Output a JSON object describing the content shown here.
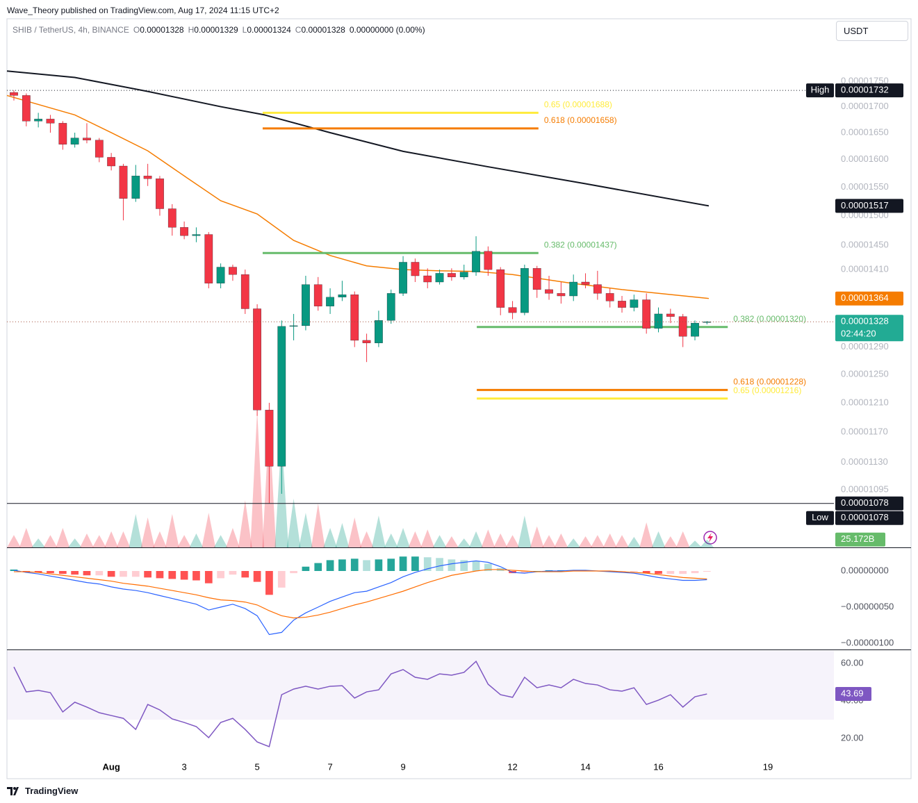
{
  "header": {
    "publisher": "Wave_Theory published on TradingView.com, Aug 17, 2024 11:15 UTC+2",
    "symbol": "SHIB / TetherUS, 4h, BINANCE",
    "ohlc": [
      {
        "key": "O",
        "value": "0.00001328"
      },
      {
        "key": "H",
        "value": "0.00001329"
      },
      {
        "key": "L",
        "value": "0.00001324"
      },
      {
        "key": "C",
        "value": "0.00001328"
      }
    ],
    "change": "0.00000000 (0.00%)",
    "currency": "USDT"
  },
  "footer": {
    "brand": "TradingView"
  },
  "chart_data": {
    "type": "candlestick",
    "log_scale": true,
    "up_color": "#089981",
    "down_color": "#f23645",
    "xlim": [
      -1.86,
      20.81
    ],
    "xticks": [
      {
        "value": 1,
        "label": "Aug"
      },
      3,
      5,
      7,
      9,
      12,
      14,
      16,
      19
    ],
    "ylim": [
      1.025e-05,
      1.879e-05
    ],
    "yticks": [
      {
        "value": 1.75e-05,
        "label": "0.00001750"
      },
      {
        "value": 1.7e-05,
        "label": "0.00001700"
      },
      {
        "value": 1.65e-05,
        "label": "0.00001650"
      },
      {
        "value": 1.6e-05,
        "label": "0.00001600"
      },
      {
        "value": 1.55e-05,
        "label": "0.00001550"
      },
      {
        "value": 1.5e-05,
        "label": "0.00001500"
      },
      {
        "value": 1.45e-05,
        "label": "0.00001450"
      },
      {
        "value": 1.41e-05,
        "label": "0.00001410"
      },
      {
        "value": 1.29e-05,
        "label": "0.00001290"
      },
      {
        "value": 1.25e-05,
        "label": "0.00001250"
      },
      {
        "value": 1.21e-05,
        "label": "0.00001210"
      },
      {
        "value": 1.17e-05,
        "label": "0.00001170"
      },
      {
        "value": 1.13e-05,
        "label": "0.00001130"
      },
      {
        "value": 1.095e-05,
        "label": "0.00001095"
      }
    ],
    "x": [
      -1.67,
      -1.33,
      -1,
      -0.67,
      -0.33,
      0,
      0.33,
      0.67,
      1,
      1.33,
      1.67,
      2,
      2.33,
      2.67,
      3,
      3.33,
      3.67,
      4,
      4.33,
      4.67,
      5,
      5.33,
      5.67,
      6,
      6.33,
      6.67,
      7,
      7.33,
      7.67,
      8,
      8.33,
      8.67,
      9,
      9.33,
      9.67,
      10,
      10.33,
      10.67,
      11,
      11.33,
      11.67,
      12,
      12.33,
      12.67,
      13,
      13.33,
      13.67,
      14,
      14.33,
      14.67,
      15,
      15.33,
      15.67,
      16,
      16.33,
      16.67,
      17,
      17.33
    ],
    "ohlc": [
      [
        1.728e-05,
        1.732e-05,
        1.712e-05,
        1.722e-05
      ],
      [
        1.722e-05,
        1.726e-05,
        1.662e-05,
        1.672e-05
      ],
      [
        1.672e-05,
        1.688e-05,
        1.66e-05,
        1.676e-05
      ],
      [
        1.676e-05,
        1.684e-05,
        1.65e-05,
        1.668e-05
      ],
      [
        1.668e-05,
        1.672e-05,
        1.618e-05,
        1.628e-05
      ],
      [
        1.628e-05,
        1.65e-05,
        1.622e-05,
        1.64e-05
      ],
      [
        1.64e-05,
        1.668e-05,
        1.63e-05,
        1.636e-05
      ],
      [
        1.636e-05,
        1.64e-05,
        1.595e-05,
        1.604e-05
      ],
      [
        1.604e-05,
        1.612e-05,
        1.58e-05,
        1.588e-05
      ],
      [
        1.588e-05,
        1.592e-05,
        1.492e-05,
        1.53e-05
      ],
      [
        1.53e-05,
        1.59e-05,
        1.524e-05,
        1.57e-05
      ],
      [
        1.57e-05,
        1.592e-05,
        1.552e-05,
        1.565e-05
      ],
      [
        1.565e-05,
        1.57e-05,
        1.5e-05,
        1.512e-05
      ],
      [
        1.512e-05,
        1.52e-05,
        1.466e-05,
        1.48e-05
      ],
      [
        1.48e-05,
        1.49e-05,
        1.46e-05,
        1.466e-05
      ],
      [
        1.466e-05,
        1.48e-05,
        1.455e-05,
        1.468e-05
      ],
      [
        1.468e-05,
        1.472e-05,
        1.38e-05,
        1.388e-05
      ],
      [
        1.388e-05,
        1.42e-05,
        1.38e-05,
        1.414e-05
      ],
      [
        1.414e-05,
        1.418e-05,
        1.392e-05,
        1.402e-05
      ],
      [
        1.402e-05,
        1.41e-05,
        1.34e-05,
        1.348e-05
      ],
      [
        1.348e-05,
        1.355e-05,
        1.192e-05,
        1.2e-05
      ],
      [
        1.2e-05,
        1.21e-05,
        1.078e-05,
        1.125e-05
      ],
      [
        1.125e-05,
        1.33e-05,
        1.09e-05,
        1.321e-05
      ],
      [
        1.321e-05,
        1.34e-05,
        1.3e-05,
        1.322e-05
      ],
      [
        1.322e-05,
        1.4e-05,
        1.315e-05,
        1.386e-05
      ],
      [
        1.386e-05,
        1.398e-05,
        1.345e-05,
        1.352e-05
      ],
      [
        1.352e-05,
        1.38e-05,
        1.34e-05,
        1.366e-05
      ],
      [
        1.366e-05,
        1.392e-05,
        1.36e-05,
        1.37e-05
      ],
      [
        1.37e-05,
        1.375e-05,
        1.29e-05,
        1.3e-05
      ],
      [
        1.3e-05,
        1.31e-05,
        1.268e-05,
        1.296e-05
      ],
      [
        1.296e-05,
        1.345e-05,
        1.29e-05,
        1.33e-05
      ],
      [
        1.33e-05,
        1.378e-05,
        1.325e-05,
        1.372e-05
      ],
      [
        1.372e-05,
        1.432e-05,
        1.368e-05,
        1.422e-05
      ],
      [
        1.422e-05,
        1.428e-05,
        1.39e-05,
        1.4e-05
      ],
      [
        1.4e-05,
        1.412e-05,
        1.38e-05,
        1.39e-05
      ],
      [
        1.39e-05,
        1.41e-05,
        1.386e-05,
        1.404e-05
      ],
      [
        1.404e-05,
        1.412e-05,
        1.392e-05,
        1.398e-05
      ],
      [
        1.398e-05,
        1.418e-05,
        1.394e-05,
        1.406e-05
      ],
      [
        1.406e-05,
        1.465e-05,
        1.4e-05,
        1.44e-05
      ],
      [
        1.44e-05,
        1.448e-05,
        1.4e-05,
        1.41e-05
      ],
      [
        1.41e-05,
        1.414e-05,
        1.338e-05,
        1.35e-05
      ],
      [
        1.35e-05,
        1.36e-05,
        1.332e-05,
        1.342e-05
      ],
      [
        1.342e-05,
        1.418e-05,
        1.338e-05,
        1.412e-05
      ],
      [
        1.412e-05,
        1.416e-05,
        1.365e-05,
        1.378e-05
      ],
      [
        1.378e-05,
        1.4e-05,
        1.362e-05,
        1.372e-05
      ],
      [
        1.372e-05,
        1.39e-05,
        1.356e-05,
        1.368e-05
      ],
      [
        1.368e-05,
        1.402e-05,
        1.36e-05,
        1.39e-05
      ],
      [
        1.39e-05,
        1.404e-05,
        1.38e-05,
        1.386e-05
      ],
      [
        1.386e-05,
        1.408e-05,
        1.362e-05,
        1.372e-05
      ],
      [
        1.372e-05,
        1.38e-05,
        1.35e-05,
        1.36e-05
      ],
      [
        1.36e-05,
        1.368e-05,
        1.342e-05,
        1.35e-05
      ],
      [
        1.35e-05,
        1.37e-05,
        1.344e-05,
        1.362e-05
      ],
      [
        1.362e-05,
        1.372e-05,
        1.31e-05,
        1.318e-05
      ],
      [
        1.318e-05,
        1.35e-05,
        1.312e-05,
        1.34e-05
      ],
      [
        1.34e-05,
        1.348e-05,
        1.326e-05,
        1.336e-05
      ],
      [
        1.336e-05,
        1.34e-05,
        1.29e-05,
        1.306e-05
      ],
      [
        1.306e-05,
        1.33e-05,
        1.3e-05,
        1.326e-05
      ],
      [
        1.328e-05,
        1.329e-05,
        1.324e-05,
        1.328e-05
      ]
    ],
    "overlays": [
      {
        "color": "#131722",
        "x": [
          -1.86,
          0,
          2,
          4,
          5.2,
          7,
          9,
          11.3,
          14,
          17.38
        ],
        "values": [
          1.771e-05,
          1.758e-05,
          1.73e-05,
          1.7e-05,
          1.684e-05,
          1.65e-05,
          1.615e-05,
          1.587e-05,
          1.556e-05,
          1.517e-05
        ]
      },
      {
        "color": "#f57c00",
        "x": [
          -1.86,
          0,
          1,
          2,
          3,
          4,
          5,
          6,
          7,
          8,
          9,
          10,
          11,
          12,
          13.5,
          15,
          17.38
        ],
        "values": [
          1.722e-05,
          1.684e-05,
          1.65e-05,
          1.616e-05,
          1.57e-05,
          1.526e-05,
          1.503e-05,
          1.458e-05,
          1.433e-05,
          1.416e-05,
          1.41e-05,
          1.408e-05,
          1.407e-05,
          1.402e-05,
          1.389e-05,
          1.378e-05,
          1.364e-05
        ]
      }
    ],
    "levels": [
      {
        "label": "0.65 (0.00001688)",
        "value": 1.688e-05,
        "x": [
          5.15,
          12.71
        ],
        "color": "#ffeb3b"
      },
      {
        "label": "0.618 (0.00001658)",
        "value": 1.658e-05,
        "x": [
          5.15,
          12.71
        ],
        "color": "#f57c00"
      },
      {
        "label": "0.382 (0.00001437)",
        "value": 1.437e-05,
        "x": [
          5.15,
          12.71
        ],
        "color": "#66bb6a"
      },
      {
        "label": "0.382 (0.00001320)",
        "value": 1.32e-05,
        "x": [
          11.02,
          17.9
        ],
        "color": "#66bb6a"
      },
      {
        "label": "0.618 (0.00001228)",
        "value": 1.228e-05,
        "x": [
          11.02,
          17.9
        ],
        "color": "#f57c00"
      },
      {
        "label": "0.65 (0.00001216)",
        "value": 1.216e-05,
        "x": [
          11.02,
          17.9
        ],
        "color": "#ffeb3b"
      }
    ],
    "price_labels": [
      {
        "value": 1.732e-05,
        "label": "0.00001732",
        "tag": "High",
        "color": "#131722",
        "line": "dotted",
        "line_color": "#131722"
      },
      {
        "value": 1.517e-05,
        "label": "0.00001517",
        "color": "#131722"
      },
      {
        "value": 1.364e-05,
        "label": "0.00001364",
        "color": "#f57c00"
      },
      {
        "value": 1.328e-05,
        "label": "0.00001328",
        "timer": "02:44:20",
        "color": "#22ab94",
        "line": "dotted",
        "line_color": "#a4503c"
      },
      {
        "value": 1.078e-05,
        "label": "0.00001078",
        "color": "#131722",
        "line": "solid",
        "line_color": "#131722"
      },
      {
        "value": 1.078e-05,
        "label": "0.00001078",
        "tag": "Low",
        "color": "#131722"
      }
    ],
    "volume": {
      "ylim": [
        0,
        450
      ],
      "values": [
        40,
        63,
        29,
        40,
        63,
        29,
        45,
        40,
        52,
        52,
        108,
        97,
        52,
        108,
        40,
        45,
        112,
        40,
        63,
        153,
        445,
        412,
        360,
        158,
        112,
        142,
        63,
        79,
        97,
        52,
        103,
        45,
        63,
        52,
        58,
        40,
        36,
        29,
        52,
        58,
        45,
        40,
        103,
        68,
        40,
        45,
        29,
        36,
        40,
        45,
        40,
        34,
        81,
        52,
        36,
        52,
        22,
        25.172
      ],
      "value_labels": [
        null,
        null,
        null,
        null,
        null,
        null,
        null,
        null,
        null,
        null,
        null,
        null,
        null,
        null,
        null,
        null,
        null,
        null,
        null,
        null,
        null,
        null,
        null,
        null,
        null,
        null,
        null,
        null,
        null,
        null,
        null,
        null,
        null,
        null,
        null,
        null,
        null,
        null,
        null,
        null,
        null,
        null,
        null,
        null,
        null,
        null,
        null,
        null,
        null,
        null,
        null,
        null,
        null,
        null,
        null,
        null,
        null,
        "25.172B"
      ],
      "label_color": "#66bb6a"
    },
    "macd": {
      "ylim": [
        -1.0865e-06,
        3.077e-07
      ],
      "yticks": [
        {
          "value": 0,
          "label": "0.00000000"
        },
        {
          "value": -5e-07,
          "label": "−0.00000050"
        },
        {
          "value": -1e-06,
          "label": "−0.00000100"
        }
      ],
      "series": [
        {
          "color": "#2962ff",
          "values": [
            1e-08,
            -2e-08,
            -4e-08,
            -7e-08,
            -1e-07,
            -1.3e-07,
            -1.6e-07,
            -1.8e-07,
            -2.2e-07,
            -2.5e-07,
            -2.7e-07,
            -3e-07,
            -3.4e-07,
            -3.8e-07,
            -4.2e-07,
            -4.6e-07,
            -5.4e-07,
            -5e-07,
            -4.6e-07,
            -5.2e-07,
            -6.2e-07,
            -8.8e-07,
            -8.5e-07,
            -6.8e-07,
            -5.8e-07,
            -5e-07,
            -4.2e-07,
            -3.6e-07,
            -3e-07,
            -2.8e-07,
            -2.2e-07,
            -1.6e-07,
            -8e-08,
            -2e-08,
            3e-08,
            7e-08,
            1e-07,
            1.2e-07,
            1.4e-07,
            1.2e-07,
            6e-08,
            -2e-08,
            -3e-08,
            -1e-08,
            0,
            0,
            1e-08,
            1e-08,
            0,
            -1e-08,
            -2e-08,
            -3e-08,
            -6e-08,
            -9e-08,
            -1.1e-07,
            -1.3e-07,
            -1.3e-07,
            -1.2e-07
          ]
        },
        {
          "color": "#ff6d00",
          "values": [
            -1e-08,
            -1e-08,
            -2e-08,
            -4e-08,
            -6e-08,
            -8e-08,
            -1e-07,
            -1.2e-07,
            -1.4e-07,
            -1.7e-07,
            -1.9e-07,
            -2.1e-07,
            -2.4e-07,
            -2.7e-07,
            -3e-07,
            -3.3e-07,
            -3.7e-07,
            -4e-07,
            -4.1e-07,
            -4.3e-07,
            -4.7e-07,
            -5.5e-07,
            -6.2e-07,
            -6.5e-07,
            -6.4e-07,
            -6.1e-07,
            -5.7e-07,
            -5.2e-07,
            -4.7e-07,
            -4.3e-07,
            -3.8e-07,
            -3.3e-07,
            -2.8e-07,
            -2.2e-07,
            -1.6e-07,
            -1.1e-07,
            -6e-08,
            -3e-08,
            0,
            2e-08,
            2e-08,
            1e-08,
            0,
            -1e-08,
            -1e-08,
            -1e-08,
            0,
            0,
            0,
            0,
            -1e-08,
            -2e-08,
            -3e-08,
            -5e-08,
            -7e-08,
            -9e-08,
            -1e-07,
            -1.1e-07
          ]
        }
      ],
      "histogram": [
        2e-08,
        -1e-08,
        -2e-08,
        -3e-08,
        -4e-08,
        -5e-08,
        -6e-08,
        -6e-08,
        -8e-08,
        -8e-08,
        -8e-08,
        -9e-08,
        -1e-07,
        -1.1e-07,
        -1.2e-07,
        -1.3e-07,
        -1.7e-07,
        -1e-07,
        -5e-08,
        -9e-08,
        -1.5e-07,
        -3.3e-07,
        -2.3e-07,
        -3e-08,
        6e-08,
        1.1e-07,
        1.5e-07,
        1.6e-07,
        1.7e-07,
        1.5e-07,
        1.6e-07,
        1.7e-07,
        2e-07,
        2e-07,
        1.9e-07,
        1.8e-07,
        1.6e-07,
        1.5e-07,
        1.4e-07,
        1e-07,
        4e-08,
        -3e-08,
        -3e-08,
        0,
        1e-08,
        1e-08,
        1e-08,
        1e-08,
        0,
        -1e-08,
        -1e-08,
        -1e-08,
        -3e-08,
        -4e-08,
        -4e-08,
        -4e-08,
        -3e-08,
        -1e-08
      ],
      "histogram_colors": [
        "#26a69a",
        "#b2dfdb",
        "#ffcdd2",
        "#ff5252"
      ]
    },
    "rsi": {
      "ylim": [
        8.15,
        66.67
      ],
      "yticks": [
        {
          "value": 60,
          "label": "60.00"
        },
        {
          "value": 40,
          "label": "40.00"
        },
        {
          "value": 20,
          "label": "20.00"
        }
      ],
      "color": "#7e57c2",
      "band": [
        30,
        70
      ],
      "band_color": "#7e57c2",
      "values": [
        58.1,
        44.8,
        45.6,
        44.4,
        34.1,
        39.3,
        36.7,
        33.7,
        32.2,
        30.7,
        24.8,
        38.1,
        35.2,
        30.4,
        28.5,
        26.3,
        20.4,
        28.5,
        30.7,
        24.8,
        18.1,
        15.6,
        43.3,
        46.3,
        47.8,
        46.3,
        47.8,
        48.1,
        41.5,
        44.8,
        45.9,
        54.4,
        56.7,
        52.6,
        51.5,
        54.4,
        53.7,
        55.2,
        61.1,
        48.9,
        43.3,
        41.9,
        52.6,
        47,
        48.5,
        47,
        51.5,
        49.3,
        48.5,
        45.9,
        45.2,
        47,
        38.1,
        40.4,
        43.3,
        36.7,
        42.2,
        43.69
      ]
    }
  }
}
